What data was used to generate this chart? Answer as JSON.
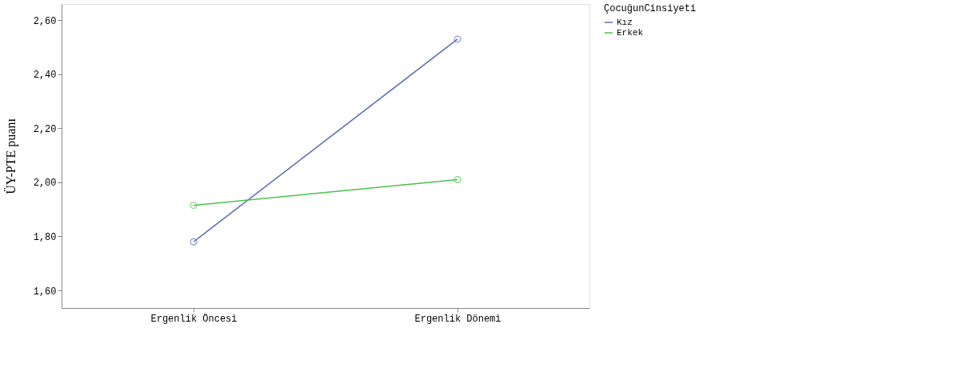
{
  "chart_data": {
    "type": "line",
    "categories": [
      "Ergenlik Öncesi",
      "Ergenlik Dönemi"
    ],
    "ylabel": "ÜY-PTE puanı",
    "legend_title": "ÇocuğunCinsiyeti",
    "series": [
      {
        "name": "Kız",
        "color": "#5a6eb8",
        "values": [
          1.78,
          2.53
        ]
      },
      {
        "name": "Erkek",
        "color": "#4cc04c",
        "values": [
          1.915,
          2.01
        ]
      }
    ],
    "ylim": [
      1.535,
      2.66
    ],
    "yticks": [
      {
        "value": 1.6,
        "label": "1,60"
      },
      {
        "value": 1.8,
        "label": "1,80"
      },
      {
        "value": 2.0,
        "label": "2,00"
      },
      {
        "value": 2.2,
        "label": "2,20"
      },
      {
        "value": 2.4,
        "label": "2,40"
      },
      {
        "value": 2.6,
        "label": "2,60"
      }
    ],
    "marker": "circle",
    "line_style": "solid",
    "grid": false,
    "legend": "top right"
  }
}
